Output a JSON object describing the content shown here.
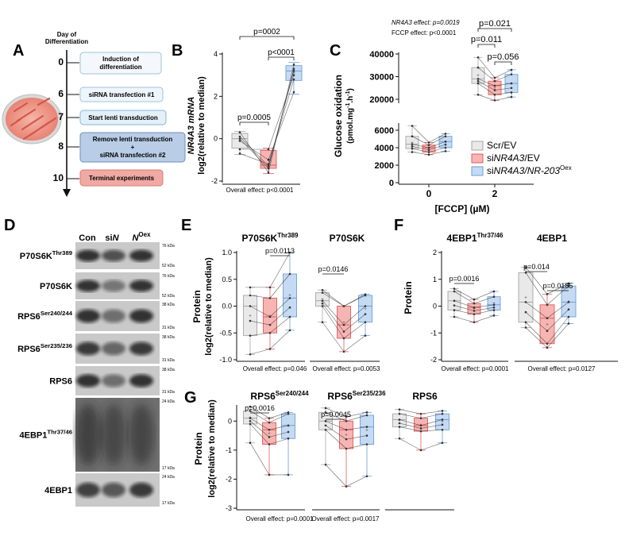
{
  "colors": {
    "ctrl_fill": "#e9e9e9",
    "ctrl_stroke": "#a6a6a6",
    "si_fill": "#f6b5b3",
    "si_stroke": "#df5f5c",
    "oex_fill": "#c5daf3",
    "oex_stroke": "#6d9fd6",
    "line": "#333333",
    "timeline_fill": "#eff6fb",
    "timeline_stroke": "#9cc4dc",
    "timeline_blue": "#b9cde6",
    "timeline_blue_stroke": "#6d8fbd",
    "timeline_red": "#f1a9a4",
    "timeline_red_stroke": "#d77b73"
  },
  "panel_a": {
    "label": "A",
    "header": [
      "Day of",
      "Differentiation"
    ],
    "days": [
      "0",
      "6",
      "7",
      "8",
      "10"
    ],
    "steps": [
      [
        "Induction of",
        "differentiation"
      ],
      [
        "siRNA transfection #1"
      ],
      [
        "Start lenti transduction"
      ],
      [
        "Remove lenti transduction",
        "+",
        "siRNA transfection #2"
      ],
      [
        "Terminal experiments"
      ]
    ]
  },
  "panel_b": {
    "label": "B",
    "ylabel_top": "NR4A3 mRNA",
    "ylabel_bottom": "log2(relative to median)",
    "yticks": [
      "-2",
      "0",
      "2",
      "4"
    ],
    "pvals": [
      "p=0002",
      "p<0001",
      "p=0.0005"
    ],
    "overall": "Overall effect: p<0.0001"
  },
  "panel_c": {
    "label": "C",
    "note1": "NR4A3 effect: p=0.0019",
    "note2": "FCCP effect: p<0.0001",
    "ylabel1": "Glucose oxidation",
    "ylabel2": "(pmol.mg-1.h-1)",
    "yticks_upper": [
      "20000",
      "30000",
      "40000"
    ],
    "yticks_lower": [
      "0",
      "2000",
      "4000",
      "6000"
    ],
    "xticks": [
      "0",
      "2"
    ],
    "xlabel": "[FCCP] (µM)",
    "pvals": [
      "p=0.021",
      "p=0.011",
      "p=0.056"
    ],
    "legend": [
      "Scr/EV",
      "siNR4A3/EV",
      "siNR4A3/NR-203Oex"
    ]
  },
  "panel_d": {
    "label": "D",
    "lanes": [
      "Con",
      "siN",
      "NOex"
    ],
    "blots": [
      {
        "name": "P70S6KThr389",
        "markers": [
          "76 kDa",
          "52 kDa"
        ]
      },
      {
        "name": "P70S6K",
        "markers": [
          "76 kDa",
          "52 kDa"
        ]
      },
      {
        "name": "RPS6Ser240/244",
        "markers": [
          "38 kDa",
          "31 kDa"
        ]
      },
      {
        "name": "RPS6Ser235/236",
        "markers": [
          "38 kDa",
          "31 kDa"
        ]
      },
      {
        "name": "RPS6",
        "markers": [
          "38 kDa",
          "31 kDa"
        ]
      },
      {
        "name": "4EBP1Thr37/46",
        "markers": [
          "24 kDa",
          "17 kDa"
        ]
      },
      {
        "name": "4EBP1",
        "markers": [
          "24 kDa",
          "17 kDa"
        ]
      }
    ]
  },
  "panel_e": {
    "label": "E",
    "titles": [
      "P70S6KThr389",
      "P70S6K"
    ],
    "ylabel1": "Protein",
    "ylabel2": "log2(relative to median)",
    "yticks": [
      "-1.0",
      "-0.5",
      "0.0",
      "0.5",
      "1.0"
    ],
    "pvals": [
      "p=0.0113",
      "p=0.0146"
    ],
    "overall": [
      "Overall effect: p=0.046",
      "Overall effect: p=0.0053"
    ]
  },
  "panel_f": {
    "label": "F",
    "titles": [
      "4EBP1Thr37/46",
      "4EBP1"
    ],
    "ylabel": "Protein",
    "yticks": [
      "-2",
      "-1",
      "0",
      "1",
      "2"
    ],
    "pvals": [
      "p=0.0016",
      "p=0.014",
      "p=0.0185"
    ],
    "overall": [
      "Overall effect: p=0.0001",
      "Overall effect: p=0.0127"
    ]
  },
  "panel_g": {
    "label": "G",
    "titles": [
      "RPS6Ser240/244",
      "RPS6Ser235/236",
      "RPS6"
    ],
    "ylabel1": "Protein",
    "ylabel2": "log2(relative to median)",
    "yticks": [
      "-3",
      "-2",
      "-1",
      "0"
    ],
    "pvals": [
      "p=0.0016",
      "p=0.0045"
    ],
    "overall": [
      "Overall effect: p=0.0001",
      "Overall effect: p=0.0017"
    ]
  },
  "chart_data": [
    {
      "panel": "B",
      "type": "box",
      "groups": [
        "Scr/EV",
        "siNR4A3/EV",
        "siNR4A3/NR-203Oex"
      ],
      "ylim": [
        -2,
        4
      ],
      "boxes": [
        {
          "min": -0.75,
          "q1": -0.45,
          "median": 0.0,
          "q3": 0.25,
          "max": 0.35
        },
        {
          "min": -1.65,
          "q1": -1.4,
          "median": -1.25,
          "q3": -0.55,
          "max": -0.45
        },
        {
          "min": 2.1,
          "q1": 2.75,
          "median": 3.2,
          "q3": 3.45,
          "max": 3.6
        }
      ],
      "points": [
        [
          0.3,
          -0.1,
          0.1,
          -0.5,
          0.0,
          -0.7
        ],
        [
          -1.6,
          -1.0,
          -1.3,
          -0.5,
          -1.4,
          -1.2
        ],
        [
          3.5,
          2.2,
          3.2,
          3.0,
          3.3,
          2.8
        ]
      ]
    },
    {
      "panel": "C",
      "type": "box",
      "groups": [
        "Scr/EV",
        "siNR4A3/EV",
        "siNR4A3/NR-203Oex"
      ],
      "categories": [
        "0",
        "2"
      ],
      "series": [
        {
          "name": "Scr/EV",
          "boxes": [
            {
              "min": 3500,
              "q1": 3900,
              "median": 4400,
              "q3": 5300,
              "max": 6500
            },
            {
              "min": 22000,
              "q1": 27000,
              "median": 29000,
              "q3": 34000,
              "max": 38500
            }
          ]
        },
        {
          "name": "siNR4A3/EV",
          "boxes": [
            {
              "min": 3200,
              "q1": 3500,
              "median": 4000,
              "q3": 4300,
              "max": 4600
            },
            {
              "min": 19500,
              "q1": 22000,
              "median": 26000,
              "q3": 28000,
              "max": 29500
            }
          ]
        },
        {
          "name": "siNR4A3/NR-203Oex",
          "boxes": [
            {
              "min": 3600,
              "q1": 4000,
              "median": 4700,
              "q3": 5300,
              "max": 5600
            },
            {
              "min": 21000,
              "q1": 23000,
              "median": 27000,
              "q3": 31000,
              "max": 33000
            }
          ]
        }
      ]
    },
    {
      "panel": "E",
      "type": "box",
      "title": "P70S6KThr389",
      "ylim": [
        -1.0,
        1.0
      ],
      "boxes": [
        {
          "min": -0.9,
          "q1": -0.55,
          "median": 0.0,
          "q3": 0.2,
          "max": 0.35
        },
        {
          "min": -0.8,
          "q1": -0.5,
          "median": -0.2,
          "q3": 0.15,
          "max": 0.35
        },
        {
          "min": -0.45,
          "q1": -0.2,
          "median": 0.15,
          "q3": 0.6,
          "max": 1.0
        }
      ]
    },
    {
      "panel": "E",
      "type": "box",
      "title": "P70S6K",
      "ylim": [
        -1.0,
        1.0
      ],
      "boxes": [
        {
          "min": -0.3,
          "q1": 0.0,
          "median": 0.1,
          "q3": 0.25,
          "max": 0.3
        },
        {
          "min": -0.85,
          "q1": -0.6,
          "median": -0.35,
          "q3": 0.0,
          "max": 0.0
        },
        {
          "min": -0.55,
          "q1": -0.3,
          "median": 0.0,
          "q3": 0.2,
          "max": 0.22
        }
      ]
    },
    {
      "panel": "F",
      "type": "box",
      "title": "4EBP1Thr37/46",
      "ylim": [
        -2,
        2
      ],
      "boxes": [
        {
          "min": -0.4,
          "q1": -0.15,
          "median": 0.2,
          "q3": 0.55,
          "max": 0.65
        },
        {
          "min": -0.6,
          "q1": -0.3,
          "median": -0.05,
          "q3": 0.1,
          "max": 0.25
        },
        {
          "min": -0.35,
          "q1": -0.15,
          "median": 0.05,
          "q3": 0.35,
          "max": 0.55
        }
      ]
    },
    {
      "panel": "F",
      "type": "box",
      "title": "4EBP1",
      "ylim": [
        -2,
        2
      ],
      "boxes": [
        {
          "min": -0.8,
          "q1": -0.6,
          "median": 0.15,
          "q3": 1.25,
          "max": 1.45
        },
        {
          "min": -1.55,
          "q1": -1.4,
          "median": -0.45,
          "q3": 0.05,
          "max": 0.45
        },
        {
          "min": -0.65,
          "q1": -0.4,
          "median": 0.15,
          "q3": 0.75,
          "max": 0.85
        }
      ]
    },
    {
      "panel": "G",
      "type": "box",
      "title": "RPS6Ser240/244",
      "ylim": [
        -3,
        0.5
      ],
      "boxes": [
        {
          "min": -0.75,
          "q1": -0.1,
          "median": 0.1,
          "q3": 0.35,
          "max": 0.5
        },
        {
          "min": -1.85,
          "q1": -0.8,
          "median": -0.3,
          "q3": -0.05,
          "max": 0.1
        },
        {
          "min": -1.85,
          "q1": -0.6,
          "median": -0.15,
          "q3": 0.25,
          "max": 0.3
        }
      ]
    },
    {
      "panel": "G",
      "type": "box",
      "title": "RPS6Ser235/236",
      "ylim": [
        -3,
        0.5
      ],
      "boxes": [
        {
          "min": -1.5,
          "q1": -0.3,
          "median": 0.0,
          "q3": 0.3,
          "max": 0.45
        },
        {
          "min": -2.25,
          "q1": -0.95,
          "median": -0.3,
          "q3": 0.0,
          "max": 0.15
        },
        {
          "min": -1.9,
          "q1": -0.8,
          "median": -0.2,
          "q3": 0.2,
          "max": 0.3
        }
      ]
    },
    {
      "panel": "G",
      "type": "box",
      "title": "RPS6",
      "ylim": [
        -3,
        0.5
      ],
      "boxes": [
        {
          "min": -0.6,
          "q1": -0.2,
          "median": 0.05,
          "q3": 0.25,
          "max": 0.4
        },
        {
          "min": -1.0,
          "q1": -0.35,
          "median": -0.15,
          "q3": 0.1,
          "max": 0.25
        },
        {
          "min": -0.75,
          "q1": -0.3,
          "median": 0.05,
          "q3": 0.25,
          "max": 0.35
        }
      ]
    }
  ]
}
